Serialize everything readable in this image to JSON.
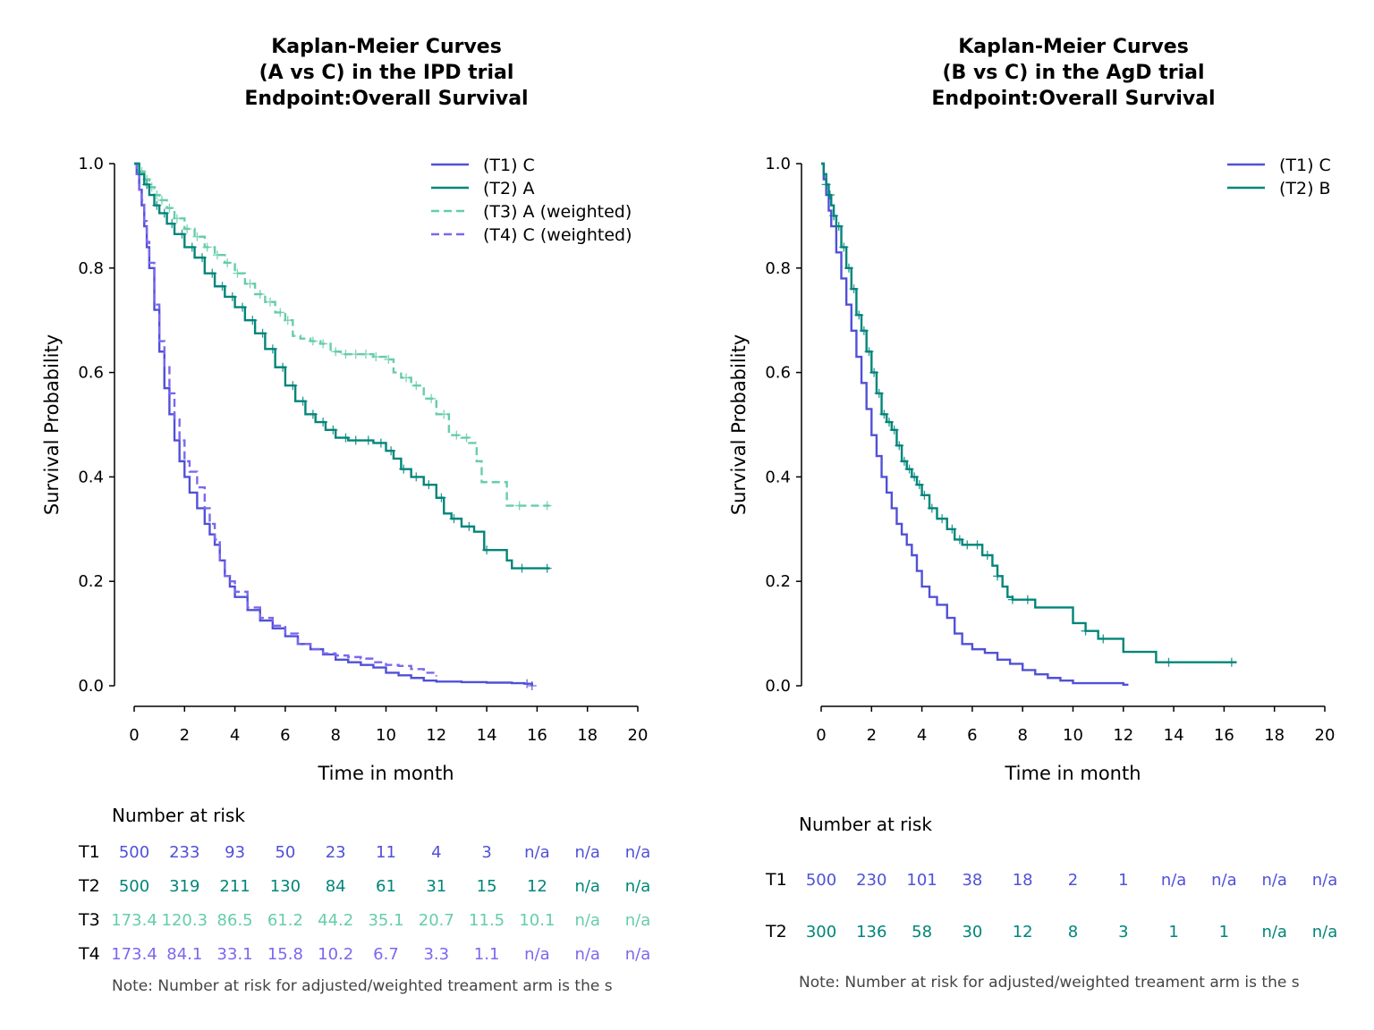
{
  "colors": {
    "T1": "#5050d8",
    "T2": "#00857a",
    "T3": "#66cdaa",
    "T4": "#7b68ee"
  },
  "chart_data": [
    {
      "type": "line",
      "title": [
        "Kaplan-Meier Curves",
        "(A vs C) in the IPD trial",
        "Endpoint:Overall Survival"
      ],
      "xlabel": "Time in month",
      "ylabel": "Survival Probability",
      "xlim": [
        0,
        20
      ],
      "ylim": [
        0,
        1
      ],
      "x_ticks": [
        "0",
        "2",
        "4",
        "6",
        "8",
        "10",
        "12",
        "14",
        "16",
        "18",
        "20"
      ],
      "y_ticks": [
        "0.0",
        "0.2",
        "0.4",
        "0.6",
        "0.8",
        "1.0"
      ],
      "legend_position": "top-right",
      "grid": false,
      "series": [
        {
          "name": "(T1) C",
          "key": "T1",
          "style": "solid",
          "x": [
            0,
            0.1,
            0.2,
            0.3,
            0.4,
            0.5,
            0.6,
            0.8,
            1.0,
            1.2,
            1.4,
            1.6,
            1.8,
            2.0,
            2.2,
            2.5,
            2.8,
            3.0,
            3.2,
            3.4,
            3.6,
            3.8,
            4.0,
            4.5,
            5.0,
            5.5,
            6.0,
            6.5,
            7.0,
            7.5,
            8.0,
            8.5,
            9.0,
            9.5,
            10.0,
            10.5,
            11.0,
            11.5,
            12.0,
            13.0,
            14.0,
            15.0,
            15.5,
            15.8
          ],
          "y": [
            1.0,
            0.98,
            0.95,
            0.92,
            0.88,
            0.84,
            0.8,
            0.72,
            0.64,
            0.57,
            0.52,
            0.47,
            0.43,
            0.4,
            0.37,
            0.34,
            0.31,
            0.29,
            0.27,
            0.24,
            0.21,
            0.19,
            0.17,
            0.145,
            0.125,
            0.11,
            0.095,
            0.08,
            0.07,
            0.06,
            0.05,
            0.045,
            0.04,
            0.035,
            0.025,
            0.02,
            0.015,
            0.01,
            0.008,
            0.007,
            0.006,
            0.005,
            0.004,
            0.0
          ],
          "censor": [
            15.6,
            15.8
          ]
        },
        {
          "name": "(T4) C (weighted)",
          "key": "T4",
          "style": "dashed",
          "x": [
            0,
            0.1,
            0.2,
            0.3,
            0.4,
            0.5,
            0.6,
            0.8,
            1.0,
            1.2,
            1.4,
            1.6,
            1.8,
            2.0,
            2.2,
            2.5,
            2.8,
            3.0,
            3.2,
            3.4,
            3.6,
            3.8,
            4.0,
            4.5,
            5.0,
            5.5,
            6.0,
            6.5,
            7.0,
            7.5,
            8.0,
            8.5,
            9.0,
            9.5,
            10.0,
            10.5,
            11.0,
            11.5,
            12.0
          ],
          "y": [
            1.0,
            0.98,
            0.95,
            0.93,
            0.89,
            0.85,
            0.81,
            0.73,
            0.66,
            0.61,
            0.56,
            0.51,
            0.47,
            0.43,
            0.41,
            0.38,
            0.34,
            0.31,
            0.28,
            0.24,
            0.21,
            0.2,
            0.18,
            0.15,
            0.13,
            0.115,
            0.1,
            0.08,
            0.07,
            0.062,
            0.058,
            0.055,
            0.052,
            0.045,
            0.04,
            0.038,
            0.032,
            0.025,
            0.018
          ],
          "censor": []
        },
        {
          "name": "(T3) A (weighted)",
          "key": "T3",
          "style": "dashed",
          "x": [
            0,
            0.2,
            0.4,
            0.6,
            0.8,
            1.0,
            1.3,
            1.6,
            2.0,
            2.4,
            2.8,
            3.2,
            3.6,
            4.0,
            4.4,
            4.8,
            5.2,
            5.6,
            6.0,
            6.3,
            6.6,
            7.0,
            7.4,
            7.8,
            8.2,
            8.6,
            9.0,
            9.5,
            10.0,
            10.3,
            10.6,
            11.0,
            11.5,
            12.0,
            12.5,
            13.0,
            13.3,
            13.6,
            13.8,
            14.5,
            14.8,
            15.5,
            16.5
          ],
          "y": [
            1.0,
            0.985,
            0.97,
            0.955,
            0.94,
            0.93,
            0.915,
            0.895,
            0.875,
            0.86,
            0.84,
            0.825,
            0.81,
            0.79,
            0.77,
            0.75,
            0.735,
            0.715,
            0.7,
            0.67,
            0.665,
            0.66,
            0.655,
            0.64,
            0.635,
            0.635,
            0.635,
            0.63,
            0.625,
            0.6,
            0.59,
            0.575,
            0.55,
            0.52,
            0.48,
            0.475,
            0.465,
            0.43,
            0.39,
            0.39,
            0.345,
            0.345,
            0.345
          ],
          "censor": [
            0.3,
            0.5,
            0.7,
            0.9,
            1.1,
            1.4,
            1.7,
            2.1,
            2.5,
            2.9,
            3.3,
            3.7,
            4.1,
            4.6,
            5.0,
            5.4,
            5.8,
            6.1,
            7.1,
            7.5,
            8.0,
            8.4,
            8.8,
            9.2,
            9.6,
            10.1,
            10.8,
            11.2,
            11.8,
            12.3,
            12.8,
            13.2,
            15.3,
            16.4
          ]
        },
        {
          "name": "(T2) A",
          "key": "T2",
          "style": "solid",
          "x": [
            0,
            0.2,
            0.4,
            0.6,
            0.8,
            1.0,
            1.3,
            1.6,
            2.0,
            2.4,
            2.8,
            3.2,
            3.6,
            4.0,
            4.4,
            4.8,
            5.2,
            5.6,
            6.0,
            6.4,
            6.8,
            7.2,
            7.6,
            8.0,
            8.5,
            9.0,
            9.5,
            10.0,
            10.3,
            10.6,
            11.0,
            11.5,
            12.0,
            12.3,
            12.6,
            13.0,
            13.5,
            13.9,
            14.5,
            14.8,
            15.0,
            16.0,
            16.5
          ],
          "y": [
            1.0,
            0.98,
            0.96,
            0.94,
            0.92,
            0.905,
            0.885,
            0.865,
            0.84,
            0.82,
            0.79,
            0.765,
            0.745,
            0.725,
            0.7,
            0.675,
            0.645,
            0.61,
            0.575,
            0.545,
            0.52,
            0.505,
            0.49,
            0.475,
            0.47,
            0.47,
            0.465,
            0.45,
            0.435,
            0.415,
            0.4,
            0.385,
            0.36,
            0.33,
            0.32,
            0.305,
            0.295,
            0.26,
            0.26,
            0.24,
            0.225,
            0.225,
            0.225
          ],
          "censor": [
            0.5,
            0.9,
            1.2,
            1.5,
            1.9,
            2.3,
            2.7,
            3.1,
            3.5,
            3.9,
            4.3,
            4.7,
            5.1,
            5.5,
            5.9,
            6.3,
            6.7,
            7.1,
            7.5,
            7.9,
            8.4,
            8.8,
            9.3,
            9.8,
            10.2,
            10.7,
            11.2,
            11.7,
            12.2,
            12.7,
            13.3,
            14.0,
            15.4,
            16.4
          ]
        }
      ],
      "risk_table": {
        "title": "Number at risk",
        "rows": [
          {
            "label": "T1",
            "key": "T1",
            "values": [
              "500",
              "233",
              "93",
              "50",
              "23",
              "11",
              "4",
              "3",
              "n/a",
              "n/a",
              "n/a"
            ]
          },
          {
            "label": "T2",
            "key": "T2",
            "values": [
              "500",
              "319",
              "211",
              "130",
              "84",
              "61",
              "31",
              "15",
              "12",
              "n/a",
              "n/a"
            ]
          },
          {
            "label": "T3",
            "key": "T3",
            "values": [
              "173.4",
              "120.3",
              "86.5",
              "61.2",
              "44.2",
              "35.1",
              "20.7",
              "11.5",
              "10.1",
              "n/a",
              "n/a"
            ]
          },
          {
            "label": "T4",
            "key": "T4",
            "values": [
              "173.4",
              "84.1",
              "33.1",
              "15.8",
              "10.2",
              "6.7",
              "3.3",
              "1.1",
              "n/a",
              "n/a",
              "n/a"
            ]
          }
        ],
        "note": "Note: Number at risk for adjusted/weighted treament arm is the s"
      }
    },
    {
      "type": "line",
      "title": [
        "Kaplan-Meier Curves",
        "(B vs C) in the AgD trial",
        "Endpoint:Overall Survival"
      ],
      "xlabel": "Time in month",
      "ylabel": "Survival Probability",
      "xlim": [
        0,
        20
      ],
      "ylim": [
        0,
        1
      ],
      "x_ticks": [
        "0",
        "2",
        "4",
        "6",
        "8",
        "10",
        "12",
        "14",
        "16",
        "18",
        "20"
      ],
      "y_ticks": [
        "0.0",
        "0.2",
        "0.4",
        "0.6",
        "0.8",
        "1.0"
      ],
      "legend_position": "top-right",
      "grid": false,
      "series": [
        {
          "name": "(T1) C",
          "key": "T1",
          "style": "solid",
          "x": [
            0,
            0.1,
            0.2,
            0.3,
            0.4,
            0.6,
            0.8,
            1.0,
            1.2,
            1.4,
            1.6,
            1.8,
            2.0,
            2.2,
            2.4,
            2.6,
            2.8,
            3.0,
            3.2,
            3.4,
            3.6,
            3.8,
            4.0,
            4.3,
            4.6,
            5.0,
            5.3,
            5.6,
            6.0,
            6.5,
            7.0,
            7.5,
            8.0,
            8.5,
            9.0,
            9.5,
            10.0,
            11.0,
            12.0,
            12.2
          ],
          "y": [
            1.0,
            0.97,
            0.94,
            0.91,
            0.88,
            0.83,
            0.78,
            0.73,
            0.68,
            0.63,
            0.58,
            0.53,
            0.48,
            0.44,
            0.4,
            0.37,
            0.34,
            0.31,
            0.29,
            0.27,
            0.25,
            0.22,
            0.19,
            0.17,
            0.155,
            0.13,
            0.1,
            0.08,
            0.07,
            0.063,
            0.05,
            0.042,
            0.03,
            0.022,
            0.015,
            0.01,
            0.005,
            0.005,
            0.002,
            0.002
          ],
          "censor": []
        },
        {
          "name": "(T2) B",
          "key": "T2",
          "style": "solid",
          "x": [
            0,
            0.1,
            0.2,
            0.3,
            0.4,
            0.5,
            0.6,
            0.8,
            1.0,
            1.2,
            1.4,
            1.6,
            1.8,
            2.0,
            2.2,
            2.4,
            2.6,
            2.8,
            3.0,
            3.2,
            3.4,
            3.6,
            3.8,
            4.0,
            4.3,
            4.6,
            5.0,
            5.3,
            5.6,
            6.0,
            6.4,
            6.8,
            7.0,
            7.2,
            7.4,
            7.6,
            8.0,
            8.5,
            9.0,
            9.5,
            10.0,
            10.5,
            11.0,
            11.5,
            12.0,
            13.0,
            13.3,
            14.0,
            15.0,
            16.5
          ],
          "y": [
            1.0,
            0.98,
            0.96,
            0.94,
            0.92,
            0.9,
            0.88,
            0.84,
            0.8,
            0.76,
            0.71,
            0.68,
            0.64,
            0.6,
            0.56,
            0.52,
            0.505,
            0.49,
            0.46,
            0.43,
            0.415,
            0.4,
            0.385,
            0.365,
            0.34,
            0.32,
            0.3,
            0.28,
            0.27,
            0.27,
            0.25,
            0.23,
            0.21,
            0.19,
            0.17,
            0.165,
            0.165,
            0.15,
            0.15,
            0.15,
            0.12,
            0.105,
            0.09,
            0.09,
            0.065,
            0.065,
            0.045,
            0.045,
            0.045,
            0.045
          ],
          "censor": [
            0.2,
            0.35,
            0.5,
            0.7,
            0.9,
            1.1,
            1.3,
            1.5,
            1.7,
            1.9,
            2.1,
            2.3,
            2.5,
            2.7,
            2.9,
            3.1,
            3.3,
            3.5,
            3.7,
            3.9,
            4.1,
            4.4,
            4.8,
            5.2,
            5.5,
            5.8,
            6.2,
            6.6,
            7.0,
            7.6,
            8.2,
            10.5,
            11.2,
            13.8,
            16.3
          ]
        }
      ],
      "risk_table": {
        "title": "Number at risk",
        "rows": [
          {
            "label": "T1",
            "key": "T1",
            "values": [
              "500",
              "230",
              "101",
              "38",
              "18",
              "2",
              "1",
              "n/a",
              "n/a",
              "n/a",
              "n/a"
            ]
          },
          {
            "label": "T2",
            "key": "T2",
            "values": [
              "300",
              "136",
              "58",
              "30",
              "12",
              "8",
              "3",
              "1",
              "1",
              "n/a",
              "n/a"
            ]
          }
        ],
        "note": "Note: Number at risk for adjusted/weighted treament arm is the s"
      }
    }
  ]
}
